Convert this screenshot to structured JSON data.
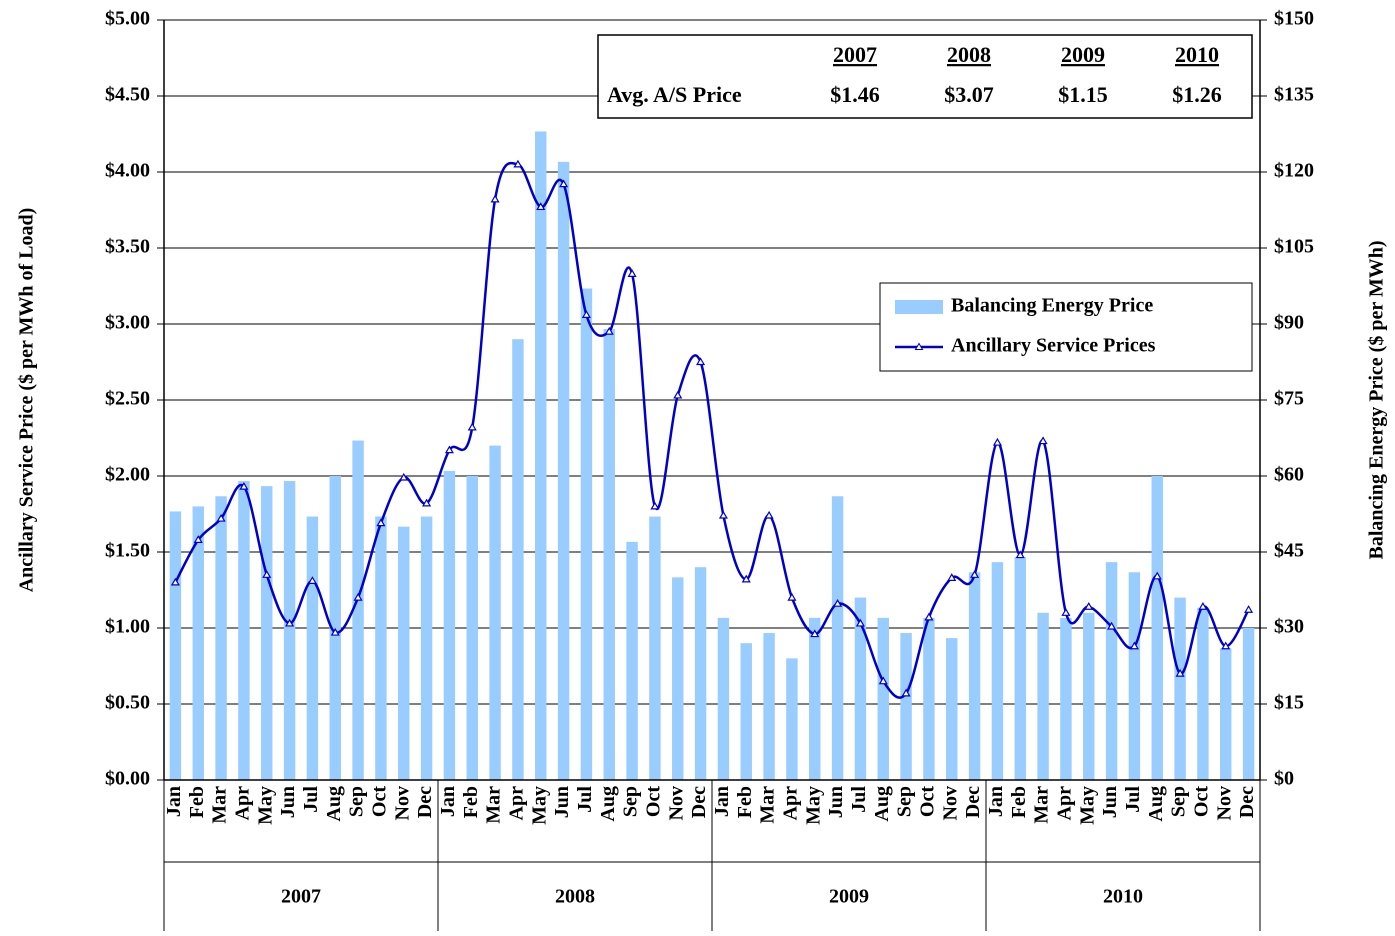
{
  "chart_data": {
    "type": "bar_line",
    "y_label": "Ancillary Service Price ($ per MWh of Load)",
    "y2_label": "Balancing Energy Price ($ per MWh)",
    "categories": [
      "Jan",
      "Feb",
      "Mar",
      "Apr",
      "May",
      "Jun",
      "Jul",
      "Aug",
      "Sep",
      "Oct",
      "Nov",
      "Dec",
      "Jan",
      "Feb",
      "Mar",
      "Apr",
      "May",
      "Jun",
      "Jul",
      "Aug",
      "Sep",
      "Oct",
      "Nov",
      "Dec",
      "Jan",
      "Feb",
      "Mar",
      "Apr",
      "May",
      "Jun",
      "Jul",
      "Aug",
      "Sep",
      "Oct",
      "Nov",
      "Dec",
      "Jan",
      "Feb",
      "Mar",
      "Apr",
      "May",
      "Jun",
      "Jul",
      "Aug",
      "Sep",
      "Oct",
      "Nov",
      "Dec"
    ],
    "year_groups": [
      "2007",
      "2008",
      "2009",
      "2010"
    ],
    "series": [
      {
        "name": "Balancing Energy Price",
        "type": "bar",
        "axis": "y2",
        "color": "#99ccff",
        "values": [
          53,
          54,
          56,
          59,
          58,
          59,
          52,
          60,
          67,
          52,
          50,
          52,
          61,
          60,
          66,
          87,
          128,
          122,
          97,
          89,
          47,
          52,
          40,
          42,
          32,
          27,
          29,
          24,
          32,
          56,
          36,
          32,
          29,
          32,
          28,
          41,
          43,
          44,
          33,
          32,
          33,
          43,
          41,
          60,
          36,
          34,
          26,
          30
        ]
      },
      {
        "name": "Ancillary Service Prices",
        "type": "line",
        "axis": "y",
        "color": "#0000cc",
        "values": [
          1.3,
          1.58,
          1.72,
          1.93,
          1.35,
          1.03,
          1.31,
          0.97,
          1.2,
          1.69,
          1.99,
          1.82,
          2.17,
          2.32,
          3.82,
          4.05,
          3.77,
          3.92,
          3.06,
          2.95,
          3.33,
          1.8,
          2.53,
          2.75,
          1.74,
          1.32,
          1.74,
          1.2,
          0.96,
          1.16,
          1.03,
          0.65,
          0.57,
          1.07,
          1.33,
          1.35,
          2.22,
          1.48,
          2.23,
          1.1,
          1.14,
          1.01,
          0.88,
          1.34,
          0.7,
          1.14,
          0.88,
          1.12
        ]
      }
    ],
    "ylim": [
      0,
      5
    ],
    "yticks": [
      {
        "value": 0,
        "label": "$0.00"
      },
      {
        "value": 0.5,
        "label": "$0.50"
      },
      {
        "value": 1,
        "label": "$1.00"
      },
      {
        "value": 1.5,
        "label": "$1.50"
      },
      {
        "value": 2,
        "label": "$2.00"
      },
      {
        "value": 2.5,
        "label": "$2.50"
      },
      {
        "value": 3,
        "label": "$3.00"
      },
      {
        "value": 3.5,
        "label": "$3.50"
      },
      {
        "value": 4,
        "label": "$4.00"
      },
      {
        "value": 4.5,
        "label": "$4.50"
      },
      {
        "value": 5,
        "label": "$5.00"
      }
    ],
    "y2lim": [
      0,
      150
    ],
    "y2ticks": [
      {
        "value": 0,
        "label": "$0"
      },
      {
        "value": 15,
        "label": "$15"
      },
      {
        "value": 30,
        "label": "$30"
      },
      {
        "value": 45,
        "label": "$45"
      },
      {
        "value": 60,
        "label": "$60"
      },
      {
        "value": 75,
        "label": "$75"
      },
      {
        "value": 90,
        "label": "$90"
      },
      {
        "value": 105,
        "label": "$105"
      },
      {
        "value": 120,
        "label": "$120"
      },
      {
        "value": 135,
        "label": "$135"
      },
      {
        "value": 150,
        "label": "$150"
      }
    ],
    "grid": true,
    "summary_table": {
      "row_label": "Avg. A/S Price",
      "columns": [
        "2007",
        "2008",
        "2009",
        "2010"
      ],
      "cells": [
        "$1.46",
        "$3.07",
        "$1.15",
        "$1.26"
      ]
    }
  }
}
